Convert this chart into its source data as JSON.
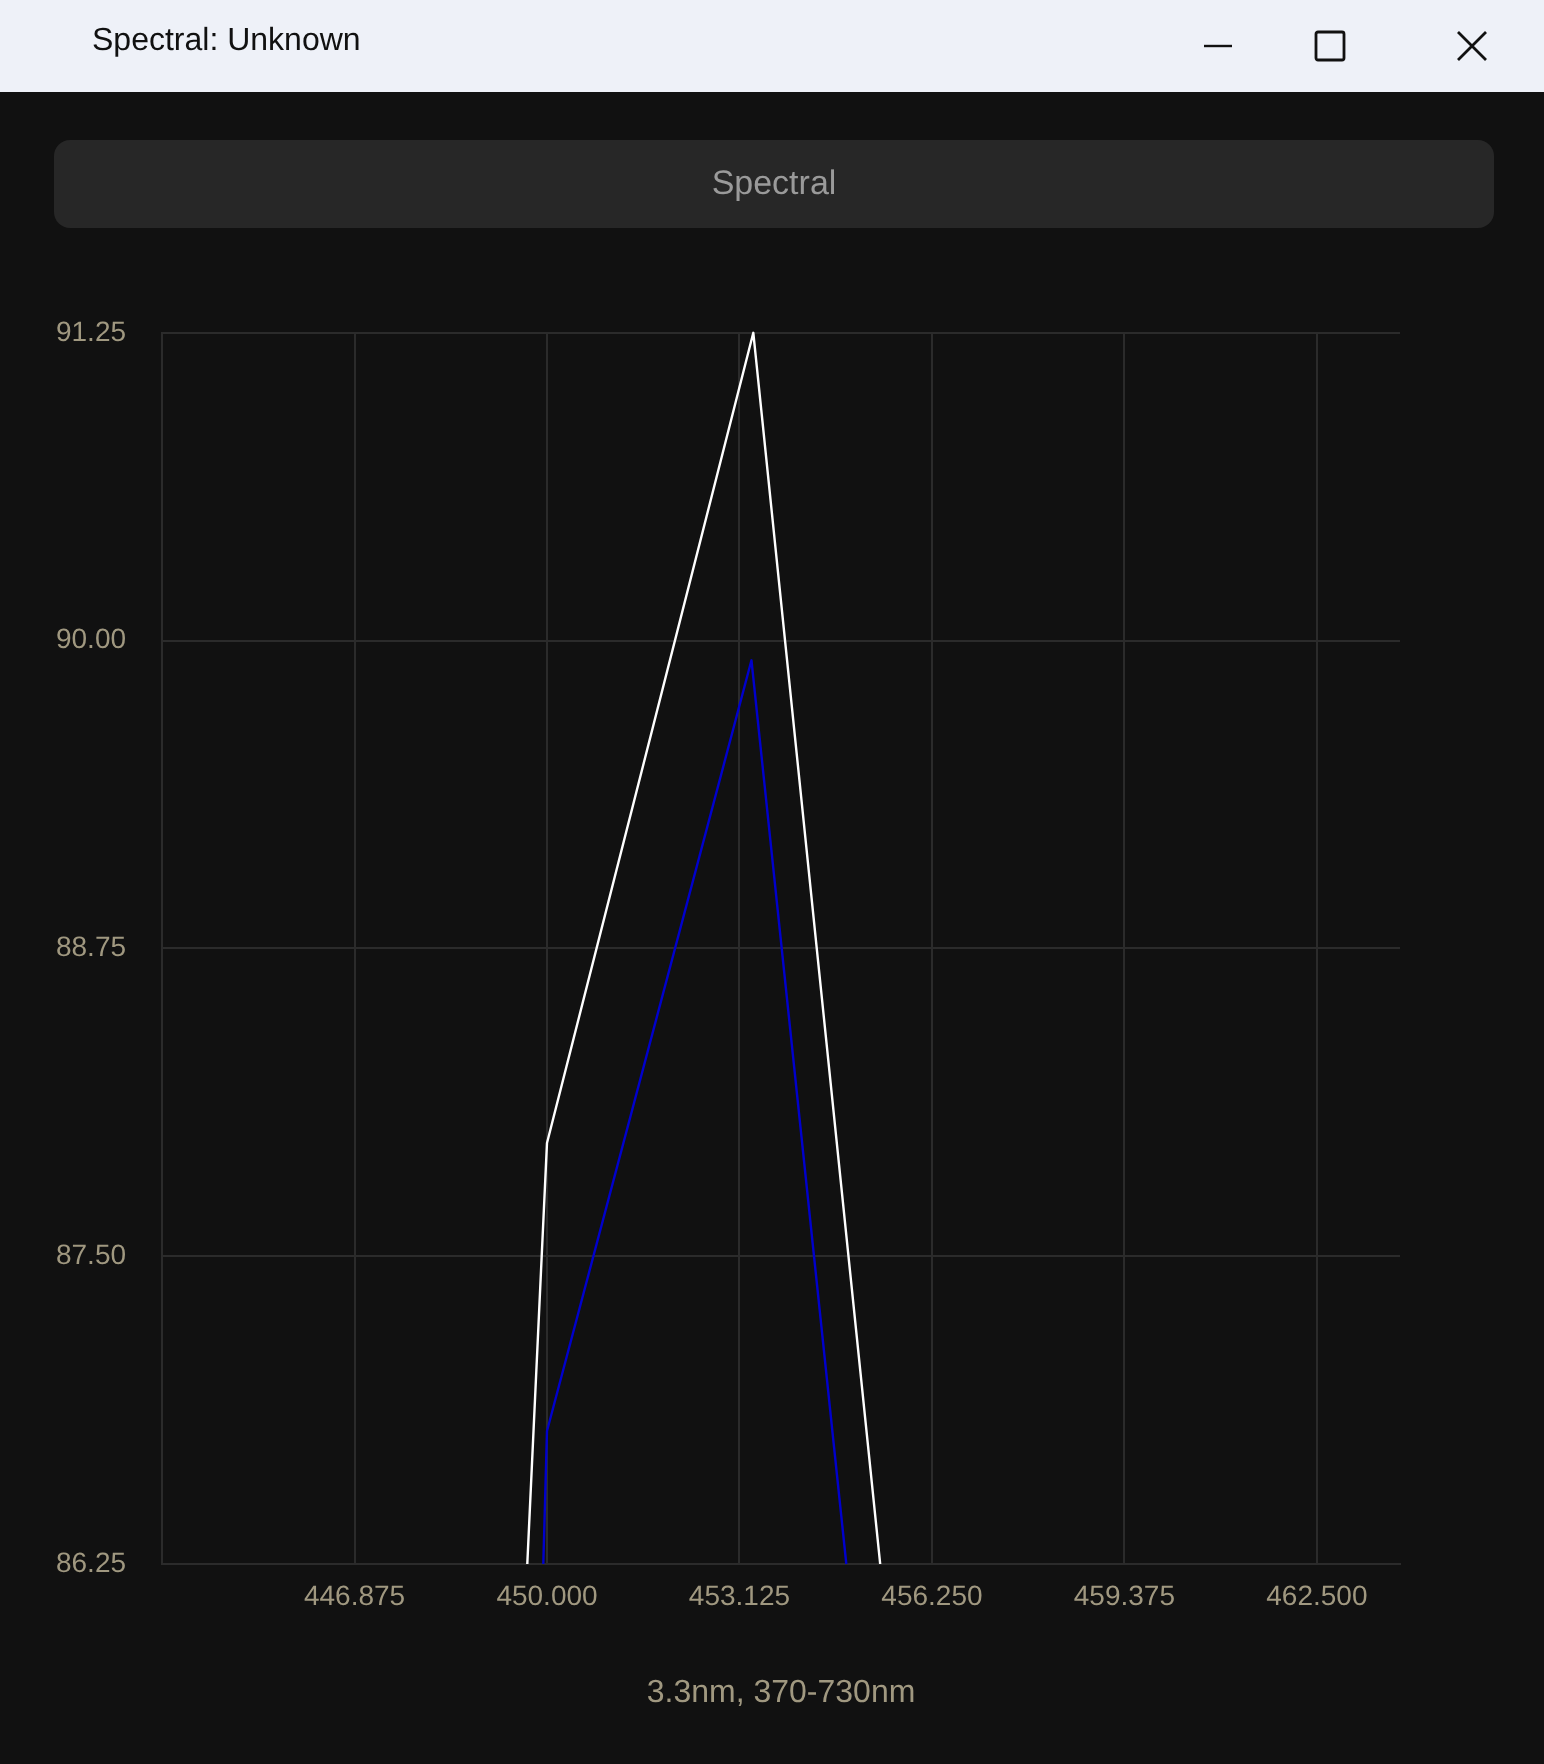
{
  "chart_data": {
    "type": "line",
    "title": "Spectral: Unknown",
    "subtitle": "Spectral",
    "xlabel": "3.3nm, 370-730nm",
    "xlim": [
      443.75,
      463.85
    ],
    "ylim": [
      86.25,
      91.25
    ],
    "xticks": [
      {
        "value": 446.875,
        "label": "446.875"
      },
      {
        "value": 450,
        "label": "450.000"
      },
      {
        "value": 453.125,
        "label": "453.125"
      },
      {
        "value": 456.25,
        "label": "456.250"
      },
      {
        "value": 459.375,
        "label": "459.375"
      },
      {
        "value": 462.5,
        "label": "462.500"
      }
    ],
    "yticks": [
      {
        "value": 86.25,
        "label": "86.25"
      },
      {
        "value": 87.5,
        "label": "87.50"
      },
      {
        "value": 88.75,
        "label": "88.75"
      },
      {
        "value": 90,
        "label": "90.00"
      },
      {
        "value": 91.25,
        "label": "91.25"
      }
    ],
    "series": [
      {
        "color": "#ffffff",
        "x": [
          449.68,
          450.0,
          453.35,
          455.41
        ],
        "values": [
          86.25,
          87.96,
          91.25,
          86.25
        ]
      },
      {
        "color": "#0000cc",
        "x": [
          449.94,
          450.0,
          453.32,
          454.86
        ],
        "values": [
          86.25,
          86.79,
          89.92,
          86.25
        ]
      }
    ],
    "grid": true,
    "legend": false
  }
}
